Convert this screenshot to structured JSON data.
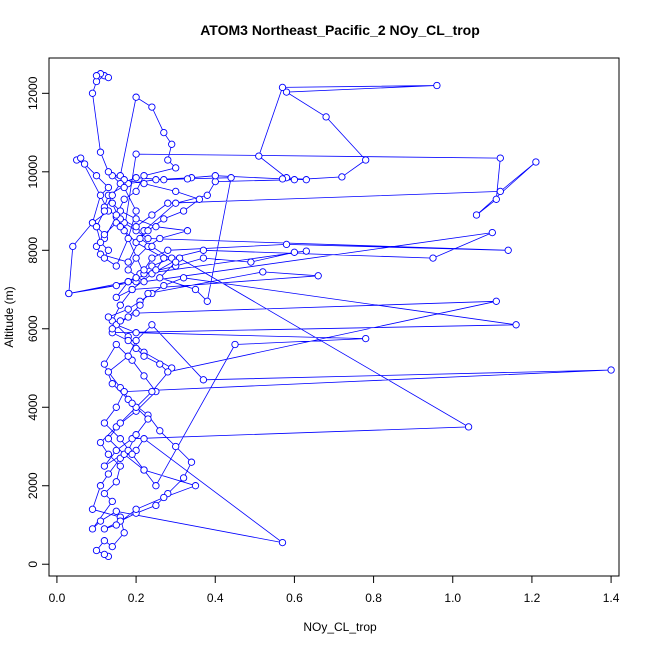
{
  "chart_data": {
    "type": "line",
    "title": "ATOM3 Northeast_Pacific_2 NOy_CL_trop",
    "xlabel": "NOy_CL_trop",
    "ylabel": "Altitude (m)",
    "xlim": [
      -0.02,
      1.42
    ],
    "ylim": [
      -300,
      12900
    ],
    "x_ticks": [
      0.0,
      0.2,
      0.4,
      0.6,
      0.8,
      1.0,
      1.2,
      1.4
    ],
    "x_tick_labels": [
      "0.0",
      "0.2",
      "0.4",
      "0.6",
      "0.8",
      "1.0",
      "1.2",
      "1.4"
    ],
    "y_ticks": [
      0,
      2000,
      4000,
      6000,
      8000,
      10000,
      12000
    ],
    "y_tick_labels": [
      "0",
      "2000",
      "4000",
      "6000",
      "8000",
      "10000",
      "12000"
    ],
    "grid": false,
    "legend": "none",
    "series_color": "#0000ff",
    "markers": "open-circle",
    "x": [
      0.13,
      0.12,
      0.1,
      0.12,
      0.14,
      0.17,
      0.16,
      0.09,
      0.11,
      0.13,
      0.16,
      0.2,
      0.22,
      0.57,
      0.15,
      0.11,
      0.09,
      0.14,
      0.12,
      0.15,
      0.16,
      0.13,
      0.11,
      0.15,
      0.2,
      0.25,
      0.22,
      0.19,
      0.15,
      0.12,
      0.14,
      0.18,
      0.23,
      0.26,
      0.3,
      0.34,
      0.32,
      0.28,
      0.25,
      0.2,
      0.16,
      0.12,
      0.15,
      0.2,
      0.27,
      0.35,
      0.22,
      0.17,
      0.13,
      0.16,
      0.2,
      0.24,
      0.29,
      0.22,
      0.18,
      0.14,
      0.16,
      0.19,
      0.24,
      0.31,
      1.04,
      0.19,
      0.15,
      0.12,
      0.18,
      0.2,
      0.23,
      0.19,
      0.16,
      0.13,
      0.18,
      0.2,
      0.24,
      0.37,
      1.4,
      0.17,
      0.15,
      0.12,
      0.16,
      0.19,
      0.22,
      0.25,
      0.45,
      0.78,
      0.2,
      0.15,
      0.13,
      0.18,
      0.21,
      0.24,
      0.27,
      0.32,
      1.16,
      0.14,
      0.18,
      0.2,
      0.22,
      0.26,
      0.28,
      1.11,
      0.2,
      0.16,
      0.14,
      0.18,
      0.21,
      0.23,
      0.52,
      0.66,
      0.19,
      0.15,
      0.18,
      0.21,
      0.24,
      0.29,
      0.37,
      0.95,
      1.1,
      0.22,
      0.18,
      0.2,
      0.23,
      0.26,
      0.33,
      0.25,
      0.2,
      0.16,
      0.14,
      0.22,
      0.3,
      0.37,
      0.49,
      0.6,
      0.63,
      0.22,
      0.18,
      0.03,
      0.2,
      0.22,
      0.24,
      0.28,
      0.58,
      1.14,
      0.23,
      0.2,
      0.17,
      0.15,
      0.12,
      0.1,
      0.11,
      0.18,
      0.22,
      0.3,
      0.38,
      0.4,
      0.6,
      0.72,
      0.78,
      0.68,
      0.58,
      0.96,
      0.57,
      0.51,
      0.58,
      0.63,
      0.57,
      0.4,
      0.34,
      0.25,
      0.18,
      0.13,
      0.12,
      0.16,
      0.2,
      0.24,
      0.28,
      1.12,
      1.21,
      1.06,
      1.11,
      1.12,
      0.2,
      0.17,
      0.15,
      0.12,
      0.1,
      0.09,
      0.11,
      0.13,
      0.1,
      0.07,
      0.05,
      0.06,
      0.13,
      0.09,
      0.04,
      0.03,
      0.15,
      0.2,
      0.25,
      0.27,
      0.2,
      0.16,
      0.15,
      0.17,
      0.2,
      0.22,
      0.3,
      0.28,
      0.29,
      0.27,
      0.24,
      0.2,
      0.16,
      0.14,
      0.17,
      0.22,
      0.3,
      0.36,
      0.32,
      0.27,
      0.23,
      0.21,
      0.24,
      0.3,
      0.26,
      0.35,
      0.38,
      0.44,
      0.33,
      0.27,
      0.2,
      0.16,
      0.14,
      0.12,
      0.1,
      0.11,
      0.13,
      0.12,
      0.15,
      0.18,
      0.2,
      0.17,
      0.13,
      0.11,
      0.09,
      0.1,
      0.12,
      0.13,
      0.11,
      0.1
    ],
    "y": [
      200,
      250,
      350,
      600,
      450,
      800,
      1200,
      1400,
      2000,
      2300,
      2700,
      2900,
      3200,
      550,
      1350,
      1100,
      900,
      1600,
      1800,
      2100,
      2500,
      2800,
      3100,
      3500,
      3900,
      4400,
      4800,
      5200,
      5600,
      5100,
      4600,
      4200,
      3800,
      3400,
      3000,
      2600,
      2200,
      1800,
      1500,
      1300,
      1100,
      900,
      1000,
      1400,
      1700,
      2000,
      2400,
      2800,
      3200,
      3600,
      4000,
      4400,
      5000,
      5400,
      5800,
      6200,
      6600,
      7000,
      7400,
      7800,
      3500,
      3200,
      2900,
      2500,
      2900,
      3300,
      3700,
      4100,
      4500,
      4900,
      5300,
      5700,
      6100,
      4700,
      4950,
      4400,
      4000,
      3600,
      3200,
      2800,
      2400,
      2000,
      5600,
      5750,
      5900,
      6100,
      6300,
      6500,
      6700,
      6900,
      7100,
      7300,
      6100,
      5900,
      5700,
      5500,
      5300,
      5100,
      4900,
      6700,
      6400,
      6200,
      6000,
      6300,
      6600,
      6900,
      7450,
      7350,
      7000,
      6800,
      7200,
      7400,
      7600,
      7800,
      8000,
      7800,
      8450,
      7200,
      7500,
      7800,
      8100,
      8300,
      8500,
      8600,
      8800,
      9000,
      9200,
      7400,
      7600,
      7800,
      7700,
      7950,
      7980,
      7400,
      7200,
      6900,
      7200,
      7500,
      7800,
      8000,
      8150,
      8000,
      8300,
      8500,
      8700,
      8850,
      8300,
      8100,
      7900,
      7700,
      8500,
      9200,
      9400,
      9750,
      9800,
      9870,
      10300,
      11400,
      12030,
      12200,
      12150,
      10400,
      9850,
      9800,
      9820,
      9900,
      9850,
      9800,
      9700,
      9400,
      9100,
      8800,
      8600,
      8900,
      9200,
      9500,
      10250,
      8900,
      9300,
      10350,
      10450,
      8500,
      8700,
      8400,
      8600,
      8700,
      9400,
      9600,
      9900,
      10200,
      10300,
      10350,
      9000,
      8700,
      8100,
      6900,
      7100,
      7300,
      7500,
      7800,
      8200,
      8600,
      8900,
      9300,
      9500,
      9900,
      10100,
      10300,
      10700,
      11000,
      11650,
      11900,
      9900,
      9900,
      9800,
      9700,
      9500,
      9300,
      9000,
      8800,
      8500,
      8300,
      8100,
      7700,
      7300,
      7000,
      6700,
      9850,
      9820,
      9800,
      9850,
      9700,
      9400,
      9000,
      8600,
      8200,
      8000,
      7800,
      7600,
      8300,
      9000,
      9600,
      10000,
      10500,
      12000,
      12300,
      12450,
      12400,
      12500,
      12450
    ]
  }
}
